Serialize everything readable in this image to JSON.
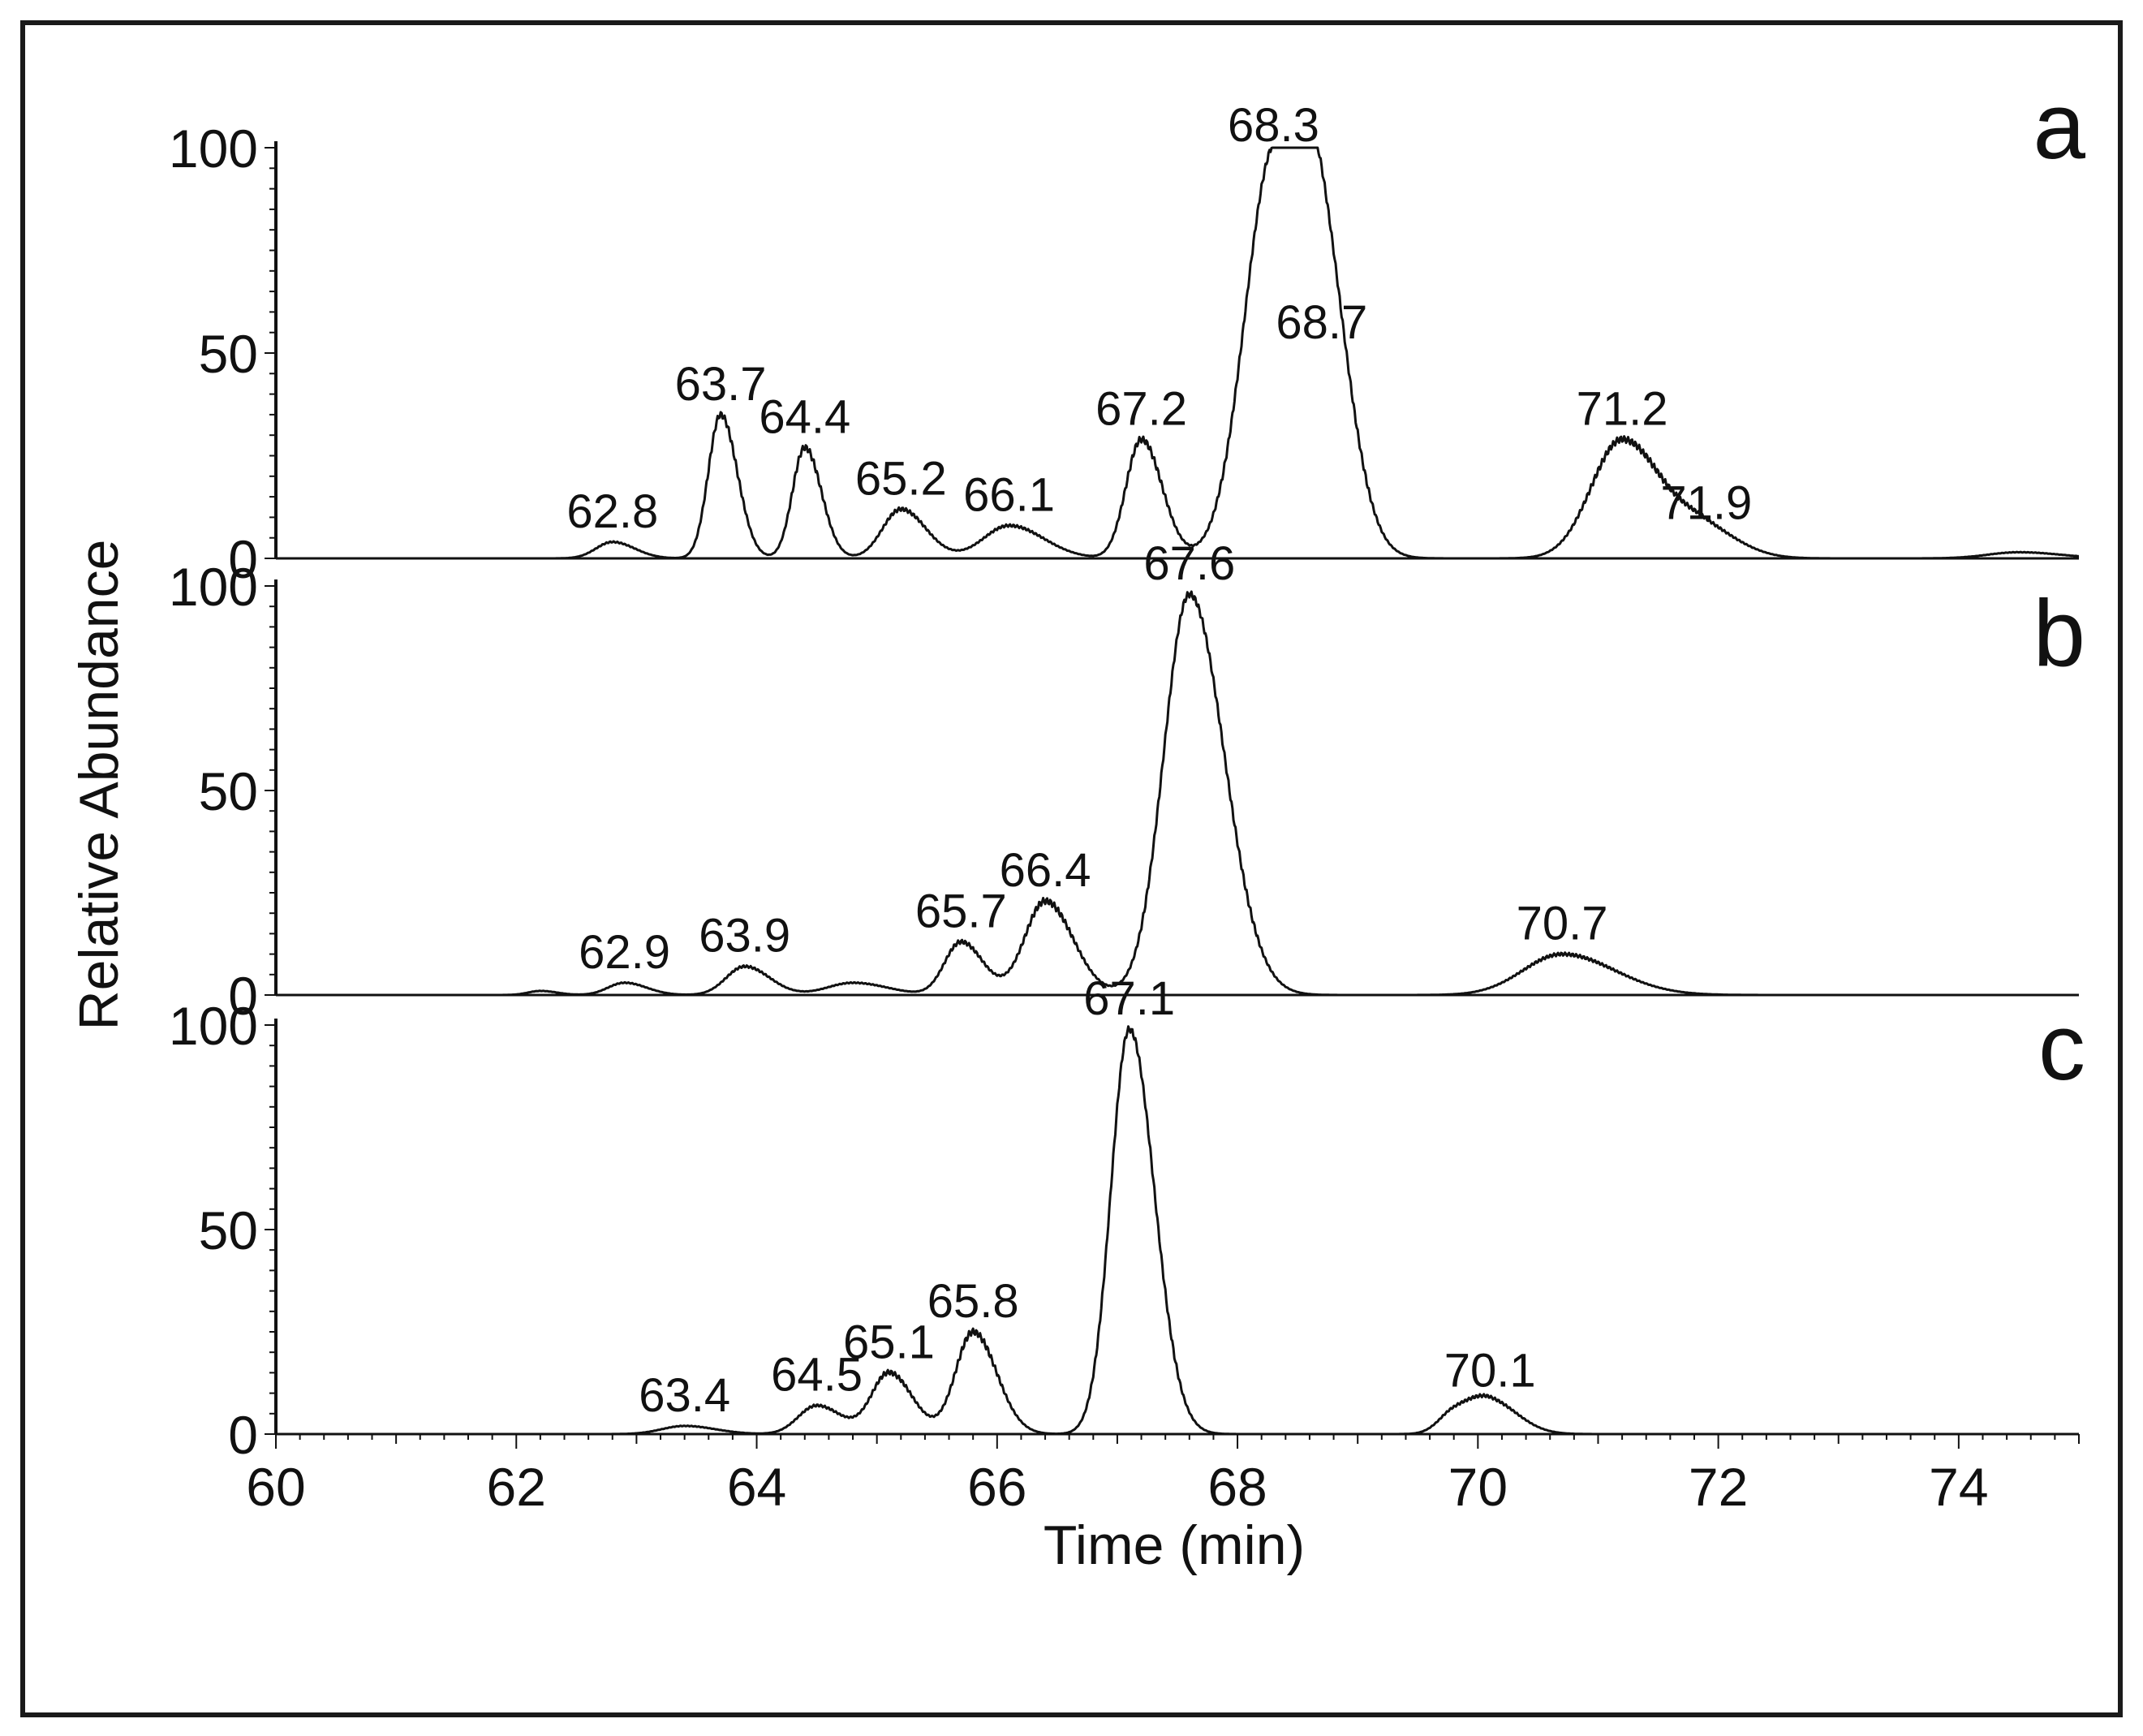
{
  "chart_data": {
    "type": "line",
    "title": "",
    "xlabel": "Time (min)",
    "ylabel": "Relative Abundance",
    "xlim": [
      60,
      75
    ],
    "xticks": [
      "60",
      "62",
      "64",
      "66",
      "68",
      "70",
      "72",
      "74"
    ],
    "yticks": [
      "0",
      "50",
      "100"
    ],
    "ylim": [
      0,
      100
    ],
    "colors": {
      "line": "#111111",
      "frame": "#1a1a1a",
      "background": "#ffffff"
    },
    "panels": [
      {
        "letter": "a",
        "peaks": [
          {
            "t": 62.8,
            "h": 4,
            "w": 0.16,
            "label": "62.8"
          },
          {
            "t": 63.7,
            "h": 35,
            "w": 0.12,
            "label": "63.7"
          },
          {
            "t": 64.4,
            "h": 27,
            "w": 0.12,
            "label": "64.4"
          },
          {
            "t": 65.2,
            "h": 12,
            "w": 0.18,
            "label": "65.2"
          },
          {
            "t": 66.1,
            "h": 8,
            "w": 0.25,
            "label": "66.1"
          },
          {
            "t": 67.2,
            "h": 29,
            "w": 0.15,
            "label": "67.2"
          },
          {
            "t": 68.3,
            "h": 98,
            "w": 0.28,
            "label": "68.3"
          },
          {
            "t": 68.7,
            "h": 50,
            "w": 0.2,
            "label": "68.7"
          },
          {
            "t": 71.2,
            "h": 29,
            "w": 0.3,
            "label": "71.2"
          },
          {
            "t": 71.9,
            "h": 6,
            "w": 0.25,
            "label": "71.9"
          }
        ],
        "extra": [
          {
            "t": 74.5,
            "h": 1.5,
            "w": 0.3
          }
        ]
      },
      {
        "letter": "b",
        "peaks": [
          {
            "t": 62.9,
            "h": 3,
            "w": 0.16,
            "label": "62.9"
          },
          {
            "t": 63.9,
            "h": 7,
            "w": 0.18,
            "label": "63.9"
          },
          {
            "t": 65.7,
            "h": 13,
            "w": 0.16,
            "label": "65.7"
          },
          {
            "t": 66.4,
            "h": 23,
            "w": 0.2,
            "label": "66.4"
          },
          {
            "t": 67.6,
            "h": 98,
            "w": 0.25,
            "label": "67.6"
          },
          {
            "t": 70.7,
            "h": 10,
            "w": 0.38,
            "label": "70.7"
          }
        ],
        "extra": [
          {
            "t": 62.2,
            "h": 1,
            "w": 0.12
          },
          {
            "t": 64.8,
            "h": 3,
            "w": 0.25
          }
        ]
      },
      {
        "letter": "c",
        "peaks": [
          {
            "t": 63.4,
            "h": 2,
            "w": 0.22,
            "label": "63.4"
          },
          {
            "t": 64.5,
            "h": 7,
            "w": 0.18,
            "label": "64.5"
          },
          {
            "t": 65.1,
            "h": 15,
            "w": 0.17,
            "label": "65.1"
          },
          {
            "t": 65.8,
            "h": 25,
            "w": 0.17,
            "label": "65.8"
          },
          {
            "t": 67.1,
            "h": 99,
            "w": 0.18,
            "label": "67.1"
          },
          {
            "t": 70.1,
            "h": 8,
            "w": 0.2,
            "label": "70.1"
          }
        ],
        "extra": [
          {
            "t": 69.8,
            "h": 5,
            "w": 0.15
          }
        ]
      }
    ]
  }
}
